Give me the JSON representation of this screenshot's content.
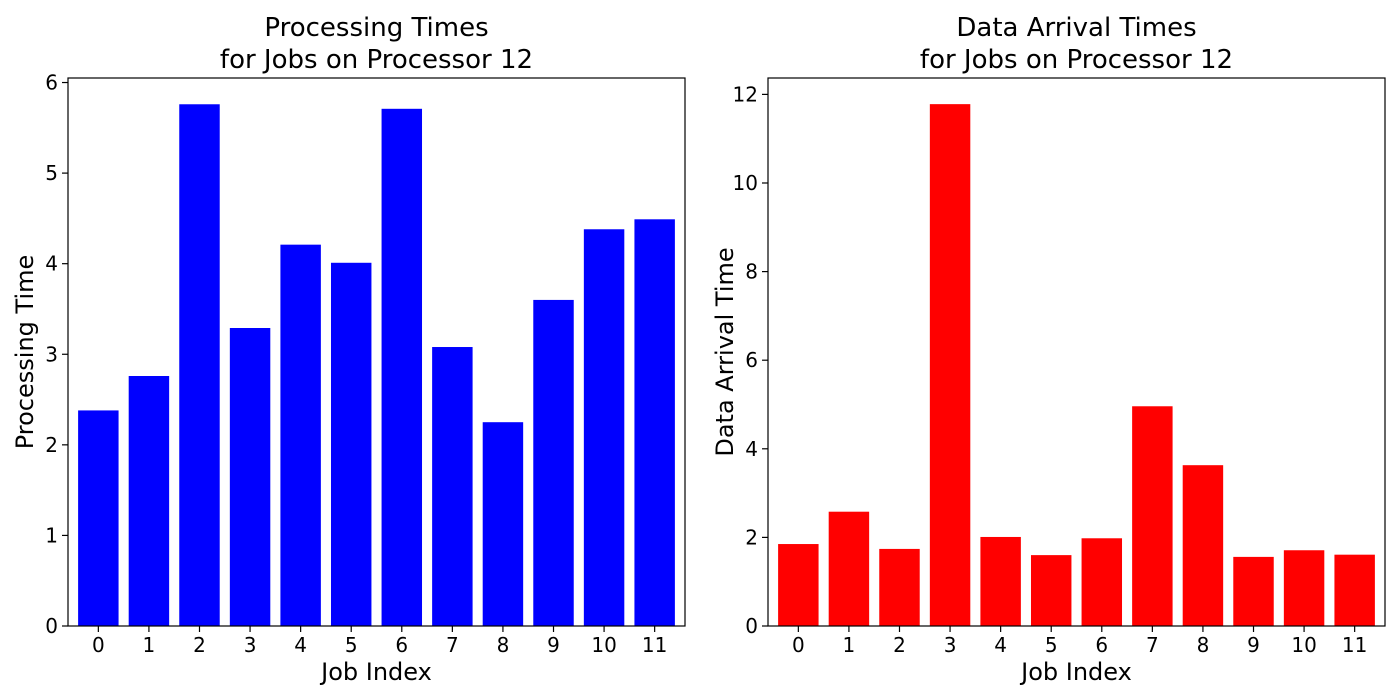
{
  "chart_data": [
    {
      "type": "bar",
      "title_lines": [
        "Processing Times",
        "for Jobs on Processor 12"
      ],
      "xlabel": "Job Index",
      "ylabel": "Processing Time",
      "color": "#0000ff",
      "categories": [
        "0",
        "1",
        "2",
        "3",
        "4",
        "5",
        "6",
        "7",
        "8",
        "9",
        "10",
        "11"
      ],
      "values": [
        2.38,
        2.76,
        5.76,
        3.29,
        4.21,
        4.01,
        5.71,
        3.08,
        2.25,
        3.6,
        4.38,
        4.49
      ],
      "ylim": [
        0,
        6.05
      ],
      "yticks": [
        0,
        1,
        2,
        3,
        4,
        5,
        6
      ],
      "grid": false
    },
    {
      "type": "bar",
      "title_lines": [
        "Data Arrival Times",
        "for Jobs on Processor 12"
      ],
      "xlabel": "Job Index",
      "ylabel": "Data Arrival Time",
      "color": "#ff0000",
      "categories": [
        "0",
        "1",
        "2",
        "3",
        "4",
        "5",
        "6",
        "7",
        "8",
        "9",
        "10",
        "11"
      ],
      "values": [
        1.85,
        2.58,
        1.74,
        11.78,
        2.01,
        1.6,
        1.98,
        4.96,
        3.63,
        1.56,
        1.71,
        1.61
      ],
      "ylim": [
        0,
        12.37
      ],
      "yticks": [
        0,
        2,
        4,
        6,
        8,
        10,
        12
      ],
      "grid": false
    }
  ]
}
